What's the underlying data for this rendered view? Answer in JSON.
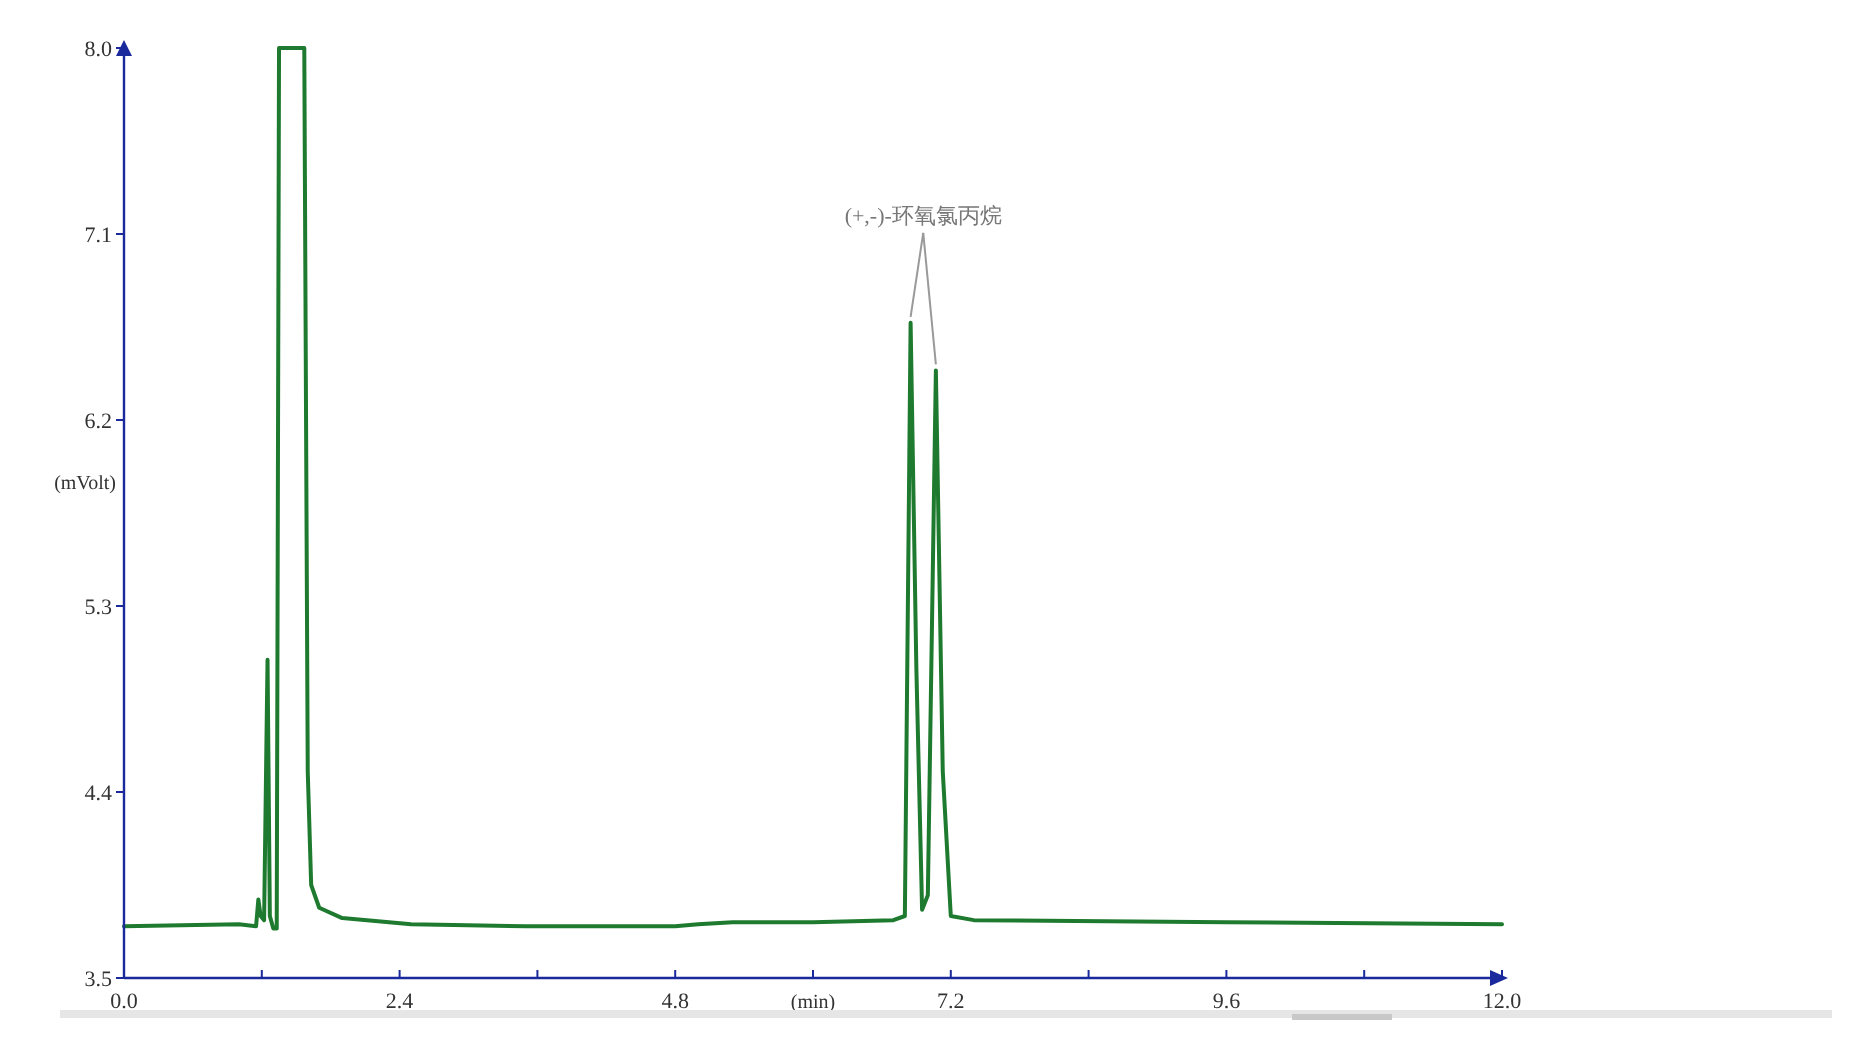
{
  "chart_data": {
    "type": "line",
    "xlabel": "(min)",
    "ylabel": "(mVolt)",
    "annotations": [
      {
        "text": "(+,-)-环氧氯丙烷",
        "x": 6.85,
        "y": 6.67
      }
    ],
    "xlim": [
      0,
      12
    ],
    "ylim": [
      3.5,
      8
    ],
    "xticks": [
      {
        "value": 0,
        "label": "0.0"
      },
      {
        "value": 1.2,
        "label": null
      },
      {
        "value": 2.4,
        "label": "2.4"
      },
      {
        "value": 3.6,
        "label": null
      },
      {
        "value": 4.8,
        "label": "4.8"
      },
      {
        "value": 6,
        "label": null
      },
      {
        "value": 7.2,
        "label": "7.2"
      },
      {
        "value": 8.4,
        "label": null
      },
      {
        "value": 9.6,
        "label": "9.6"
      },
      {
        "value": 10.8,
        "label": null
      },
      {
        "value": 12,
        "label": "12.0"
      }
    ],
    "yticks": [
      3.5,
      4.4,
      5.3,
      6.2,
      7.1,
      {
        "value": 8,
        "label": "8.0"
      }
    ],
    "grid": false,
    "marker": "none",
    "line_style": "solid",
    "series": [
      {
        "color": "#1e7a2e",
        "x": [
          0,
          1.0,
          1.15,
          1.17,
          1.19,
          1.22,
          1.25,
          1.27,
          1.3,
          1.33,
          1.35,
          1.57,
          1.6,
          1.63,
          1.7,
          1.9,
          2.5,
          3.5,
          4.8,
          5.0,
          5.3,
          6.0,
          6.7,
          6.8,
          6.85,
          6.9,
          6.95,
          7.0,
          7.07,
          7.13,
          7.2,
          7.4,
          9.6,
          12.0
        ],
        "values": [
          3.75,
          3.76,
          3.75,
          3.88,
          3.8,
          3.78,
          5.04,
          3.8,
          3.74,
          3.74,
          8.0,
          8.0,
          4.5,
          3.95,
          3.84,
          3.79,
          3.76,
          3.75,
          3.75,
          3.76,
          3.77,
          3.77,
          3.78,
          3.8,
          6.67,
          5.0,
          3.83,
          3.9,
          6.44,
          4.5,
          3.8,
          3.78,
          3.77,
          3.76
        ]
      }
    ]
  }
}
